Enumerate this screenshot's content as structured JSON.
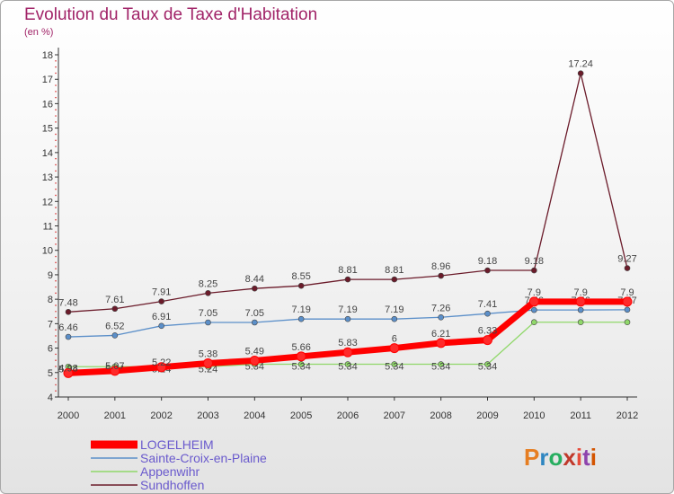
{
  "title": "Evolution du Taux de Taxe d'Habitation",
  "subtitle": "(en %)",
  "logo": {
    "text": "Proxiti",
    "letter_colors": [
      "#e67e22",
      "#2e86c1",
      "#27ae60",
      "#c0392b",
      "#e74c3c",
      "#8e44ad",
      "#d35400"
    ]
  },
  "chart_data": {
    "type": "line",
    "x": [
      "2000",
      "2001",
      "2002",
      "2003",
      "2004",
      "2005",
      "2006",
      "2007",
      "2008",
      "2009",
      "2010",
      "2011",
      "2012"
    ],
    "ylim": [
      4,
      18
    ],
    "yticks": [
      "4",
      "5",
      "6",
      "7",
      "8",
      "9",
      "10",
      "11",
      "12",
      "13",
      "14",
      "15",
      "16",
      "17",
      "18"
    ],
    "grid": false,
    "legend_position": "bottom-left",
    "series": [
      {
        "name": "Sundhoffen",
        "color": "#6b1b2a",
        "width": 1.3,
        "marker_fill": "#6b1b2a",
        "values": [
          7.48,
          7.61,
          7.91,
          8.25,
          8.44,
          8.55,
          8.81,
          8.81,
          8.96,
          9.18,
          9.18,
          17.24,
          9.27
        ],
        "labels": [
          "7.48",
          "7.61",
          "7.91",
          "8.25",
          "8.44",
          "8.55",
          "8.81",
          "8.81",
          "8.96",
          "9.18",
          "9.18",
          "17.24",
          "9.27"
        ]
      },
      {
        "name": "Sainte-Croix-en-Plaine",
        "color": "#5b8fc9",
        "width": 1.3,
        "marker_fill": "#5b8fc9",
        "values": [
          6.46,
          6.52,
          6.91,
          7.05,
          7.05,
          7.19,
          7.19,
          7.19,
          7.26,
          7.41,
          7.56,
          7.56,
          7.57
        ],
        "labels": [
          "6.46",
          "6.52",
          "6.91",
          "7.05",
          "7.05",
          "7.19",
          "7.19",
          "7.19",
          "7.26",
          "7.41",
          "7.56",
          "7.56",
          "7.57"
        ]
      },
      {
        "name": "Appenwihr",
        "color": "#90d86a",
        "width": 1.3,
        "marker_fill": "#90d86a",
        "values": [
          5.24,
          5.24,
          5.24,
          5.24,
          5.34,
          5.34,
          5.34,
          5.34,
          5.34,
          5.34,
          7.06,
          7.06,
          7.06
        ],
        "labels": [
          "5.24",
          "5.24",
          "5.24",
          "5.24",
          "5.34",
          "5.34",
          "5.34",
          "5.34",
          "5.34",
          "5.34",
          "",
          "",
          ""
        ]
      },
      {
        "name": "LOGELHEIM",
        "color": "#ff0000",
        "width": 7,
        "marker_fill": "#ff2a2a",
        "values": [
          4.98,
          5.07,
          5.22,
          5.38,
          5.49,
          5.66,
          5.83,
          6,
          6.21,
          6.33,
          7.9,
          7.9,
          7.9
        ],
        "labels": [
          "4.98",
          "5.07",
          "5.22",
          "5.38",
          "5.49",
          "5.66",
          "5.83",
          "6",
          "6.21",
          "6.33",
          "7.9",
          "7.9",
          "7.9"
        ]
      }
    ],
    "legend_order": [
      "LOGELHEIM",
      "Sainte-Croix-en-Plaine",
      "Appenwihr",
      "Sundhoffen"
    ]
  }
}
